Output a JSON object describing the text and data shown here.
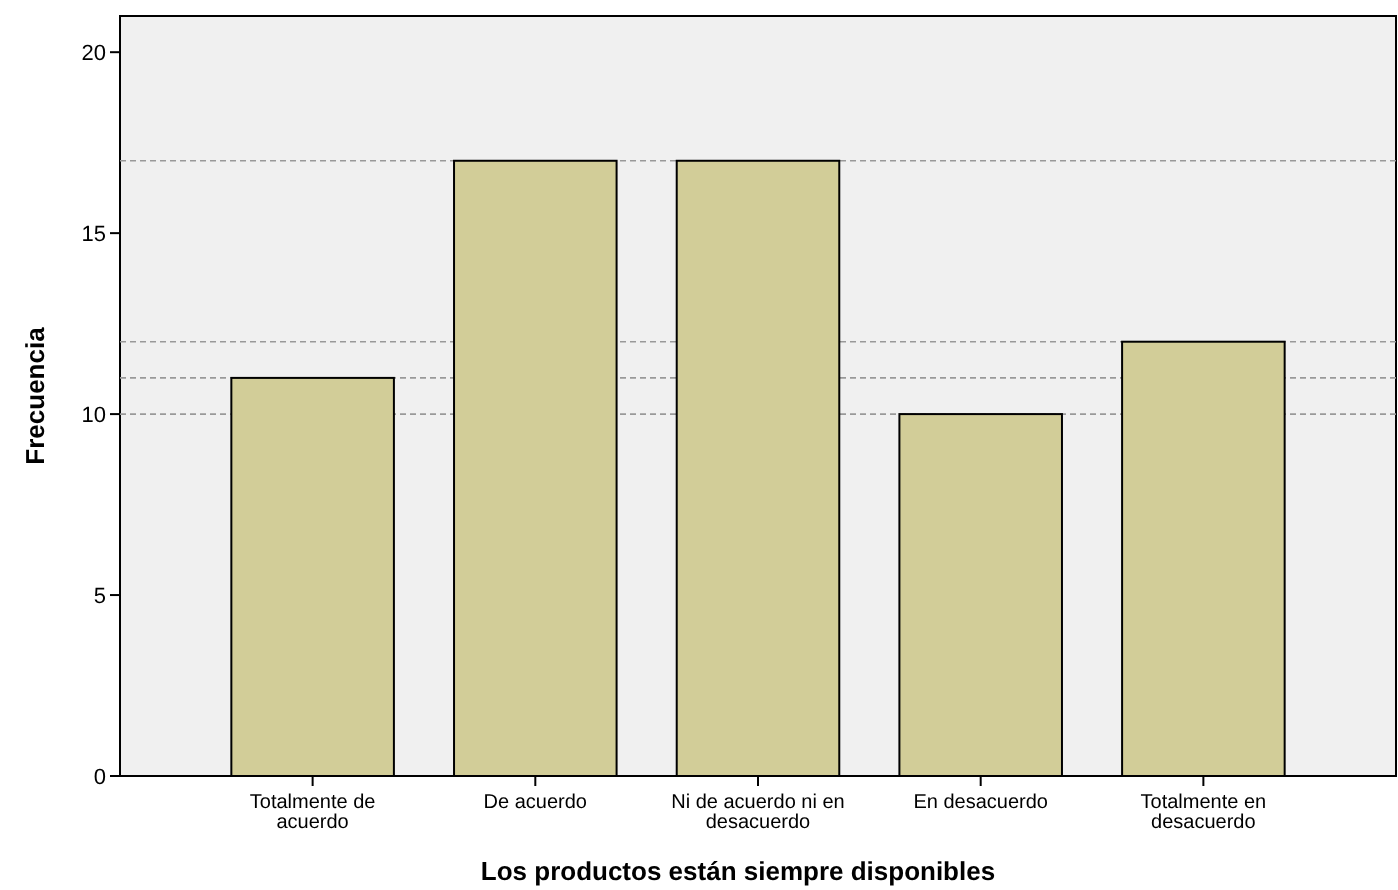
{
  "chart_data": {
    "type": "bar",
    "xlabel": "Los productos están siempre disponibles",
    "ylabel": "Frecuencia",
    "categories": [
      "Totalmente de acuerdo",
      "De acuerdo",
      "Ni de acuerdo ni en desacuerdo",
      "En desacuerdo",
      "Totalmente en desacuerdo"
    ],
    "values": [
      11,
      17,
      17,
      10,
      12
    ],
    "color": "#d2cd98",
    "ylim": [
      0,
      21
    ],
    "yticks": [
      0,
      5,
      10,
      15,
      20
    ],
    "grid": false,
    "ref_lines": [
      {
        "axis": "y",
        "value": 17,
        "line_style": "dashed",
        "color": "#999999"
      },
      {
        "axis": "y",
        "value": 11,
        "line_style": "dashed",
        "color": "#999999"
      },
      {
        "axis": "y",
        "value": 12,
        "line_style": "dashed",
        "color": "#999999"
      },
      {
        "axis": "y",
        "value": 10,
        "line_style": "dashed",
        "color": "#999999"
      }
    ]
  }
}
